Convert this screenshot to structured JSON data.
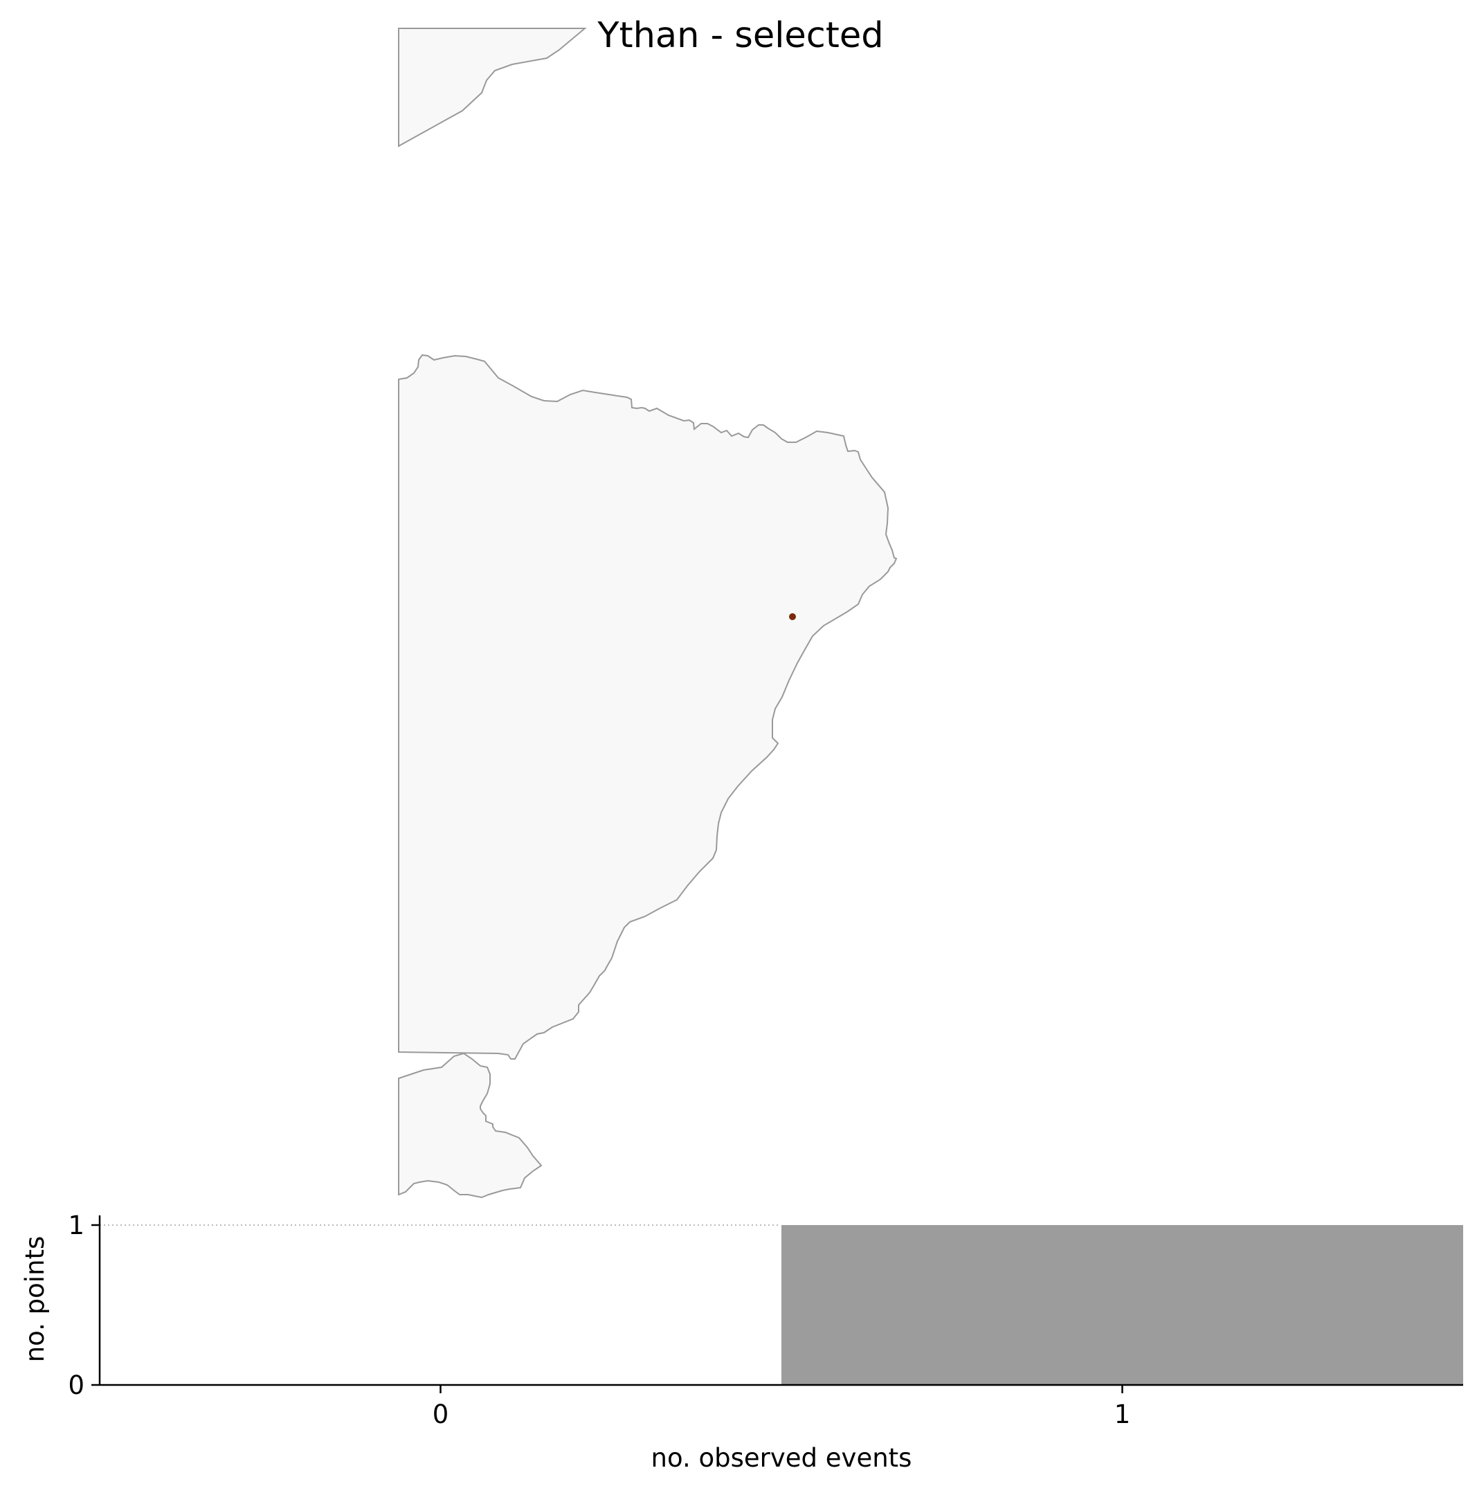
{
  "title": "Ythan - selected",
  "map": {
    "land_color": "#f8f8f8",
    "coast_color": "#999999",
    "point_color": "#7b2a0c",
    "site_label": ""
  },
  "chart_data": {
    "type": "bar",
    "categories": [
      "0",
      "1"
    ],
    "values": [
      0,
      1
    ],
    "bar_color": "#9c9c9c",
    "xlabel": "no. observed events",
    "ylabel": "no. points",
    "ylim": [
      0,
      1
    ],
    "yticks": [
      "0",
      "1"
    ],
    "reference_line": 1,
    "grid": false,
    "legend": "none"
  }
}
